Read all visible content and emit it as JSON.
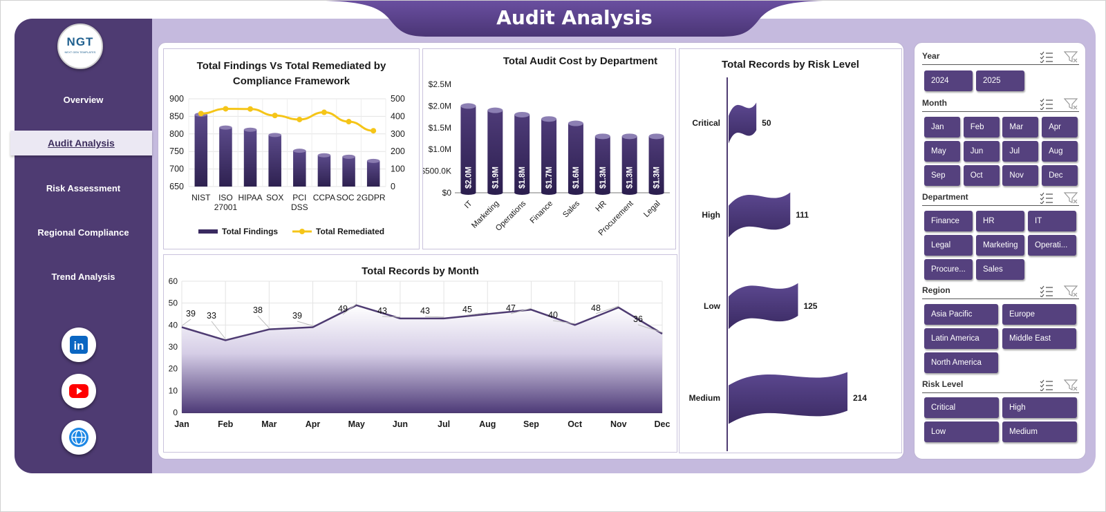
{
  "header": {
    "title": "Audit Analysis"
  },
  "sidebar": {
    "logo_text": "NGT",
    "logo_subtext": "NEXT GEN TEMPLATES",
    "items": [
      {
        "label": "Overview",
        "active": false
      },
      {
        "label": "Audit Analysis",
        "active": true
      },
      {
        "label": "Risk Assessment",
        "active": false
      },
      {
        "label": "Regional Compliance",
        "active": false
      },
      {
        "label": "Trend Analysis",
        "active": false
      }
    ],
    "social": [
      {
        "icon": "linkedin-icon",
        "text": "in",
        "color": "#0a66c2"
      },
      {
        "icon": "youtube-icon",
        "color": "#ff0000"
      },
      {
        "icon": "globe-icon",
        "color": "#1e88e5"
      }
    ]
  },
  "colors": {
    "accent": "#4e3b72",
    "panel_bg": "#c5bade",
    "slicer_button": "#55417e",
    "line": "#f5c518",
    "bar": "#4b3a75"
  },
  "chart_data": [
    {
      "type": "bar",
      "title": "Total Findings Vs Total Remediated by Compliance Framework",
      "categories": [
        "NIST",
        "ISO 27001",
        "HIPAA",
        "SOX",
        "PCI DSS",
        "CCPA",
        "SOC 2",
        "GDPR"
      ],
      "series": [
        {
          "name": "Total Findings",
          "type": "bar",
          "axis": "left",
          "values": [
            855,
            818,
            812,
            797,
            752,
            739,
            735,
            723
          ]
        },
        {
          "name": "Total Remediated",
          "type": "line",
          "axis": "right",
          "values": [
            416,
            443,
            442,
            405,
            382,
            423,
            370,
            318
          ]
        }
      ],
      "ylim": [
        650,
        900
      ],
      "yticks": [
        "900",
        "850",
        "800",
        "750",
        "700",
        "650"
      ],
      "y2lim": [
        0,
        500
      ],
      "y2ticks": [
        "500",
        "400",
        "300",
        "200",
        "100",
        "0"
      ],
      "legend": "bottom"
    },
    {
      "type": "bar",
      "title": "Total Audit Cost by Department",
      "categories": [
        "IT",
        "Marketing",
        "Operations",
        "Finance",
        "Sales",
        "HR",
        "Procurement",
        "Legal"
      ],
      "values": [
        2.0,
        1.9,
        1.8,
        1.7,
        1.6,
        1.3,
        1.3,
        1.3
      ],
      "data_labels": [
        "$2.0M",
        "$1.9M",
        "$1.8M",
        "$1.7M",
        "$1.6M",
        "$1.3M",
        "$1.3M",
        "$1.3M"
      ],
      "ylim": [
        0,
        2.5
      ],
      "yticks": [
        "$2.5M",
        "$2.0M",
        "$1.5M",
        "$1.0M",
        "$500.0K",
        "$0"
      ]
    },
    {
      "type": "bar",
      "orientation": "horizontal",
      "title": "Total Records by Risk Level",
      "categories": [
        "Critical",
        "High",
        "Low",
        "Medium"
      ],
      "values": [
        50,
        111,
        125,
        214
      ]
    },
    {
      "type": "area",
      "title": "Total Records by Month",
      "categories": [
        "Jan",
        "Feb",
        "Mar",
        "Apr",
        "May",
        "Jun",
        "Jul",
        "Aug",
        "Sep",
        "Oct",
        "Nov",
        "Dec"
      ],
      "values": [
        39,
        33,
        38,
        39,
        49,
        43,
        43,
        45,
        47,
        40,
        48,
        36
      ],
      "ylim": [
        0,
        60
      ],
      "yticks": [
        "60",
        "50",
        "40",
        "30",
        "20",
        "10",
        "0"
      ],
      "grid": true
    }
  ],
  "slicers": [
    {
      "label": "Year",
      "items": [
        "2024",
        "2025"
      ]
    },
    {
      "label": "Month",
      "items": [
        "Jan",
        "Feb",
        "Mar",
        "Apr",
        "May",
        "Jun",
        "Jul",
        "Aug",
        "Sep",
        "Oct",
        "Nov",
        "Dec"
      ]
    },
    {
      "label": "Department",
      "items": [
        "Finance",
        "HR",
        "IT",
        "Legal",
        "Marketing",
        "Operati...",
        "Procure...",
        "Sales"
      ]
    },
    {
      "label": "Region",
      "items": [
        "Asia Pacific",
        "Europe",
        "Latin America",
        "Middle East",
        "North America"
      ]
    },
    {
      "label": "Risk Level",
      "items": [
        "Critical",
        "High",
        "Low",
        "Medium"
      ]
    }
  ]
}
